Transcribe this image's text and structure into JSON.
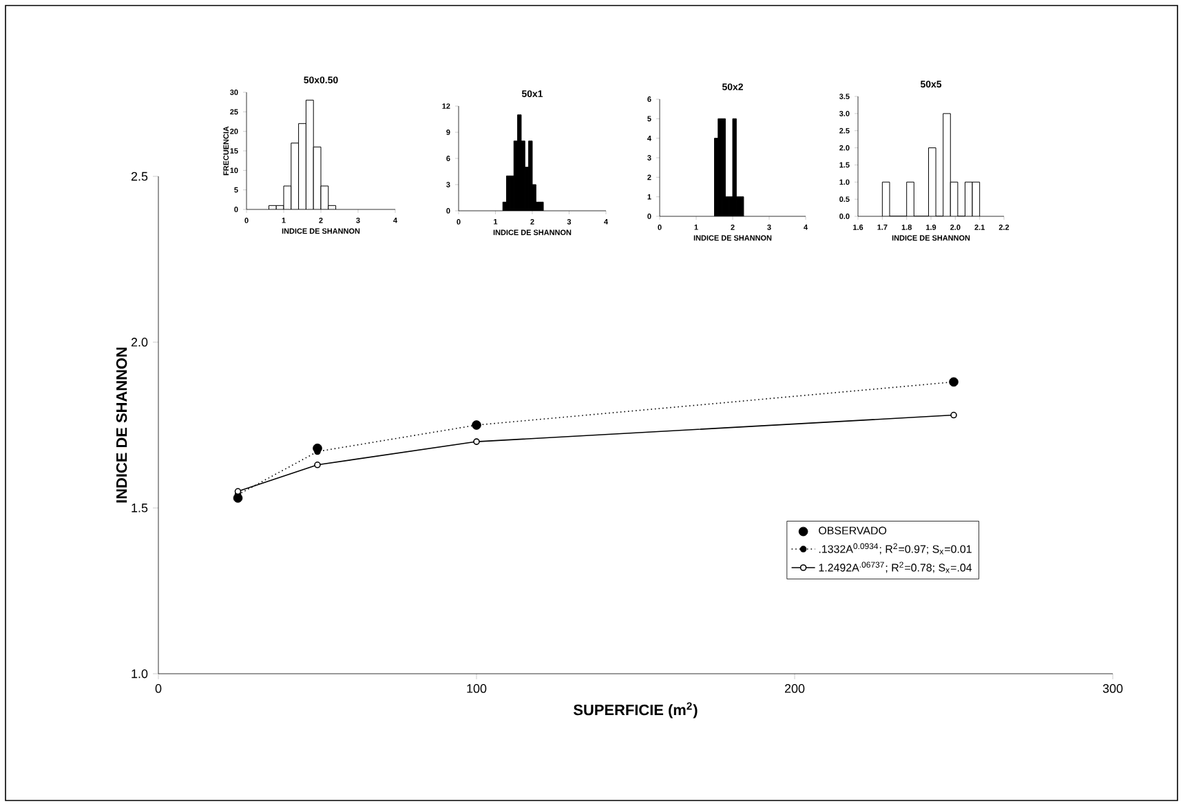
{
  "chart_data": [
    {
      "type": "line",
      "xlabel": "SUPERFICIE (m$^{2}$)",
      "ylabel": "INDICE DE SHANNON",
      "x": [
        25,
        50,
        100,
        250
      ],
      "xlim": [
        0,
        300
      ],
      "xticks": [
        0,
        100,
        200,
        300
      ],
      "ylim": [
        1.0,
        2.5
      ],
      "yticks": [
        {
          "value": 1.0,
          "label": "1.0"
        },
        {
          "value": 1.5,
          "label": "1.5"
        },
        {
          "value": 2.0,
          "label": "2.0"
        },
        {
          "value": 2.5,
          "label": "2.5"
        }
      ],
      "grid": false,
      "legend": "bottom right",
      "series": [
        {
          "name": "OBSERVADO",
          "type": "scatter",
          "color": "#000000",
          "marker": "circle",
          "values": [
            1.53,
            1.68,
            1.75,
            1.88
          ]
        },
        {
          "name": ".1332A$^{0.0934}$; R$^{2}$=0.97; S$_{x}$=0.01",
          "type": "line",
          "line_style": "dotted",
          "color": "#000000",
          "marker": "circle",
          "values": [
            1.54,
            1.67,
            1.75,
            1.88
          ]
        },
        {
          "name": "1.2492A$^{.06737}$; R$^{2}$=0.78; S$_{x}$=.04",
          "type": "line",
          "line_style": "solid",
          "color": "#000000",
          "marker": "circle",
          "values": [
            1.55,
            1.63,
            1.7,
            1.78
          ]
        }
      ]
    },
    {
      "type": "histogram",
      "title": "50x0.50",
      "xlabel": "INDICE DE SHANNON",
      "ylabel": "FRECUENCIA",
      "color": "#ffffff",
      "bins": [
        0.6,
        0.8,
        1.0,
        1.2,
        1.4,
        1.6,
        1.8,
        2.0,
        2.2,
        2.4
      ],
      "values": [
        1,
        1,
        6,
        17,
        22,
        28,
        16,
        6,
        1
      ],
      "xlim": [
        0,
        4
      ],
      "xticks": [
        0,
        1,
        2,
        3,
        4
      ],
      "ylim": [
        0,
        30
      ],
      "yticks": [
        0,
        5,
        10,
        15,
        20,
        25,
        30
      ]
    },
    {
      "type": "histogram",
      "title": "50x1",
      "xlabel": "INDICE DE SHANNON",
      "color": "#000000",
      "bins": [
        1.2,
        1.3,
        1.4,
        1.5,
        1.6,
        1.7,
        1.8,
        1.9,
        2.0,
        2.1,
        2.2,
        2.3
      ],
      "values": [
        1,
        4,
        4,
        8,
        11,
        8,
        5,
        8,
        3,
        1,
        1
      ],
      "xlim": [
        0,
        4
      ],
      "xticks": [
        0,
        1,
        2,
        3,
        4
      ],
      "ylim": [
        0,
        12
      ],
      "yticks": [
        0,
        3,
        6,
        9,
        12
      ]
    },
    {
      "type": "histogram",
      "title": "50x2",
      "xlabel": "INDICE DE SHANNON",
      "color": "#000000",
      "bins": [
        1.5,
        1.6,
        1.7,
        1.8,
        1.9,
        2.0,
        2.1,
        2.2,
        2.3
      ],
      "values": [
        4,
        5,
        5,
        1,
        1,
        5,
        1,
        1
      ],
      "xlim": [
        0,
        4
      ],
      "xticks": [
        0,
        1,
        2,
        3,
        4
      ],
      "ylim": [
        0,
        6
      ],
      "yticks": [
        0,
        1,
        2,
        3,
        4,
        5,
        6
      ]
    },
    {
      "type": "histogram",
      "title": "50x5",
      "xlabel": "INDICE DE SHANNON",
      "color": "#ffffff",
      "bins": [
        1.7,
        1.73,
        1.8,
        1.83,
        1.89,
        1.92,
        1.95,
        1.98,
        2.01,
        2.04,
        2.07,
        2.1
      ],
      "values": [
        1,
        0,
        1,
        0,
        2,
        0,
        3,
        1,
        0,
        1,
        1
      ],
      "xlim": [
        1.6,
        2.2
      ],
      "xticks": [
        {
          "value": 1.6,
          "label": "1.6"
        },
        {
          "value": 1.7,
          "label": "1.7"
        },
        {
          "value": 1.8,
          "label": "1.8"
        },
        {
          "value": 1.9,
          "label": "1.9"
        },
        {
          "value": 2.0,
          "label": "2.0"
        },
        {
          "value": 2.1,
          "label": "2.1"
        },
        {
          "value": 2.2,
          "label": "2.2"
        }
      ],
      "ylim": [
        0,
        3.5
      ],
      "yticks": [
        {
          "value": 0,
          "label": "0.0"
        },
        {
          "value": 0.5,
          "label": "0.5"
        },
        {
          "value": 1.0,
          "label": "1.0"
        },
        {
          "value": 1.5,
          "label": "1.5"
        },
        {
          "value": 2.0,
          "label": "2.0"
        },
        {
          "value": 2.5,
          "label": "2.5"
        },
        {
          "value": 3.0,
          "label": "3.0"
        },
        {
          "value": 3.5,
          "label": "3.5"
        }
      ]
    }
  ]
}
